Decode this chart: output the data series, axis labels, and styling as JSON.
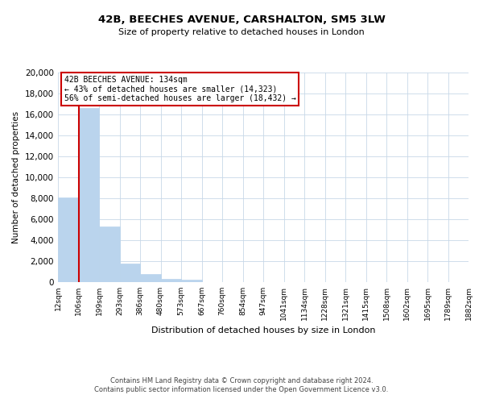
{
  "title": "42B, BEECHES AVENUE, CARSHALTON, SM5 3LW",
  "subtitle": "Size of property relative to detached houses in London",
  "xlabel": "Distribution of detached houses by size in London",
  "ylabel": "Number of detached properties",
  "bin_labels": [
    "12sqm",
    "106sqm",
    "199sqm",
    "293sqm",
    "386sqm",
    "480sqm",
    "573sqm",
    "667sqm",
    "760sqm",
    "854sqm",
    "947sqm",
    "1041sqm",
    "1134sqm",
    "1228sqm",
    "1321sqm",
    "1415sqm",
    "1508sqm",
    "1602sqm",
    "1695sqm",
    "1789sqm",
    "1882sqm"
  ],
  "bar_heights": [
    8100,
    16600,
    5300,
    1800,
    750,
    300,
    200,
    0,
    0,
    0,
    0,
    0,
    0,
    0,
    0,
    0,
    0,
    0,
    0,
    0
  ],
  "bar_color": "#bad4ed",
  "bar_edge_color": "#bad4ed",
  "vline_x": 1,
  "vline_color": "#cc0000",
  "ylim": [
    0,
    20000
  ],
  "yticks": [
    0,
    2000,
    4000,
    6000,
    8000,
    10000,
    12000,
    14000,
    16000,
    18000,
    20000
  ],
  "annotation_title": "42B BEECHES AVENUE: 134sqm",
  "annotation_line1": "← 43% of detached houses are smaller (14,323)",
  "annotation_line2": "56% of semi-detached houses are larger (18,432) →",
  "annotation_box_color": "#ffffff",
  "annotation_box_edge": "#cc0000",
  "footnote1": "Contains HM Land Registry data © Crown copyright and database right 2024.",
  "footnote2": "Contains public sector information licensed under the Open Government Licence v3.0.",
  "background_color": "#ffffff",
  "grid_color": "#c8d8e8",
  "n_bins": 20
}
